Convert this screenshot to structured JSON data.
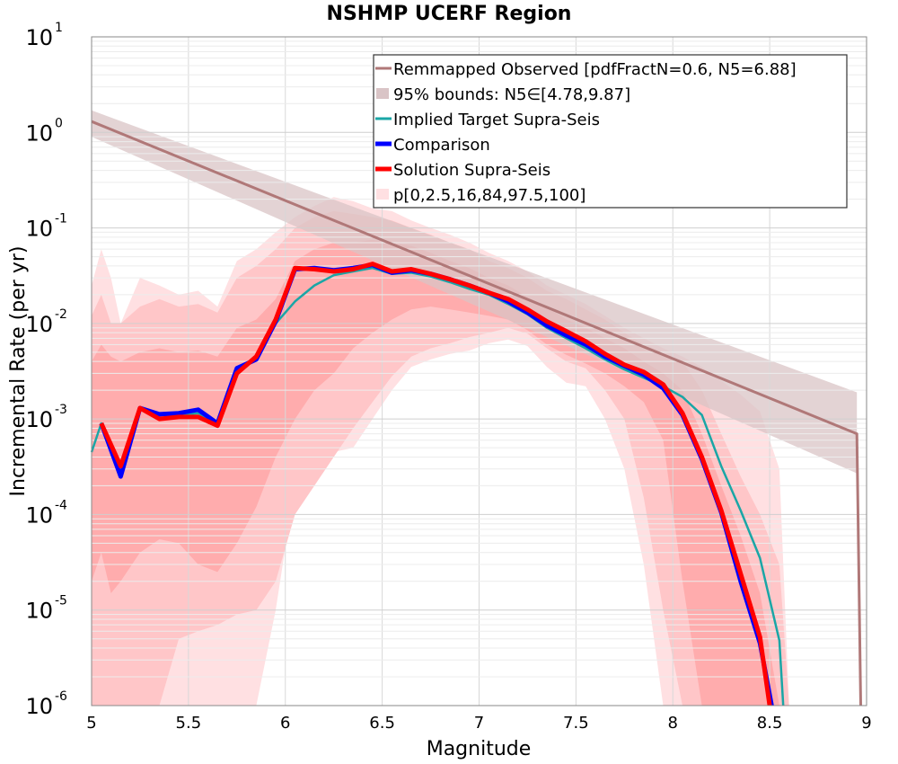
{
  "chart_data": {
    "type": "line",
    "title": "NSHMP UCERF Region",
    "xlabel": "Magnitude",
    "ylabel": "Incremental Rate (per yr)",
    "xlim": [
      5,
      9
    ],
    "ylim": [
      1e-06,
      10
    ],
    "yscale": "log",
    "grid": true,
    "legend_position": "top-right",
    "x_ticks": [
      "5",
      "5.5",
      "6",
      "6.5",
      "7",
      "7.5",
      "8",
      "8.5",
      "9"
    ],
    "y_ticks": [
      {
        "base": "10",
        "exp": "-6"
      },
      {
        "base": "10",
        "exp": "-5"
      },
      {
        "base": "10",
        "exp": "-4"
      },
      {
        "base": "10",
        "exp": "-3"
      },
      {
        "base": "10",
        "exp": "-2"
      },
      {
        "base": "10",
        "exp": "-1"
      },
      {
        "base": "10",
        "exp": "0"
      },
      {
        "base": "10",
        "exp": "1"
      }
    ],
    "colors": {
      "observed": "#b07878",
      "observed_band": "#d9c4c6",
      "target": "#1aa6a6",
      "comparison": "#0000ff",
      "solution": "#ff0000",
      "band_outer": "#ffe0e2",
      "band_mid": "#ffc6c8",
      "band_inner": "#ffacad"
    },
    "legend": [
      {
        "key": "observed",
        "label": "Remmapped Observed [pdfFractN=0.6, N5=6.88]"
      },
      {
        "key": "observed_band",
        "label": "95% bounds: N5∈[4.78,9.87]"
      },
      {
        "key": "target",
        "label": "Implied Target Supra-Seis"
      },
      {
        "key": "comparison",
        "label": "Comparison"
      },
      {
        "key": "solution",
        "label": "Solution Supra-Seis"
      },
      {
        "key": "band",
        "label": "p[0,2.5,16,84,97.5,100]"
      }
    ],
    "series": [
      {
        "name": "Remmapped Observed [pdfFractN=0.6, N5=6.88]",
        "key": "observed",
        "x": [
          5.0,
          8.95,
          8.97
        ],
        "y": [
          1.3,
          0.0007,
          1e-06
        ]
      },
      {
        "name": "95% bounds: N5∈[4.78,9.87]",
        "key": "observed_band",
        "x": [
          5.0,
          8.95
        ],
        "lower": [
          0.9,
          0.00027
        ],
        "upper": [
          1.7,
          0.0019
        ]
      },
      {
        "name": "Implied Target Supra-Seis",
        "key": "target",
        "x": [
          5.0,
          5.05,
          5.15,
          5.25,
          5.35,
          5.45,
          5.55,
          5.65,
          5.75,
          5.85,
          5.95,
          6.05,
          6.15,
          6.25,
          6.35,
          6.45,
          6.55,
          6.65,
          6.75,
          6.85,
          6.95,
          7.05,
          7.15,
          7.25,
          7.35,
          7.45,
          7.55,
          7.65,
          7.75,
          7.85,
          7.95,
          8.05,
          8.15,
          8.25,
          8.35,
          8.45,
          8.55,
          8.57
        ],
        "y": [
          0.00045,
          0.0009,
          0.00025,
          0.0013,
          0.0011,
          0.0011,
          0.00115,
          0.0009,
          0.0034,
          0.0042,
          0.01,
          0.017,
          0.025,
          0.032,
          0.035,
          0.038,
          0.033,
          0.034,
          0.031,
          0.027,
          0.023,
          0.02,
          0.016,
          0.0125,
          0.009,
          0.007,
          0.0055,
          0.0042,
          0.0033,
          0.0027,
          0.0022,
          0.0017,
          0.0011,
          0.00032,
          0.00011,
          3.5e-05,
          4.8e-06,
          1e-06
        ]
      },
      {
        "name": "Comparison",
        "key": "comparison",
        "x": [
          5.05,
          5.15,
          5.25,
          5.35,
          5.45,
          5.55,
          5.65,
          5.75,
          5.85,
          5.95,
          6.05,
          6.15,
          6.25,
          6.35,
          6.45,
          6.55,
          6.65,
          6.75,
          6.85,
          6.95,
          7.05,
          7.15,
          7.25,
          7.35,
          7.45,
          7.55,
          7.65,
          7.75,
          7.85,
          7.95,
          8.05,
          8.15,
          8.25,
          8.35,
          8.45,
          8.51
        ],
        "y": [
          0.0009,
          0.00025,
          0.0013,
          0.00112,
          0.00115,
          0.00125,
          0.0009,
          0.0034,
          0.0042,
          0.0105,
          0.037,
          0.038,
          0.036,
          0.038,
          0.041,
          0.034,
          0.036,
          0.033,
          0.029,
          0.025,
          0.021,
          0.017,
          0.013,
          0.0095,
          0.0075,
          0.006,
          0.0045,
          0.0036,
          0.0029,
          0.0021,
          0.0011,
          0.00038,
          0.000105,
          2e-05,
          4.5e-06,
          1e-06
        ]
      },
      {
        "name": "Solution Supra-Seis",
        "key": "solution",
        "x": [
          5.05,
          5.15,
          5.25,
          5.35,
          5.45,
          5.55,
          5.65,
          5.75,
          5.85,
          5.95,
          6.05,
          6.15,
          6.25,
          6.35,
          6.45,
          6.55,
          6.65,
          6.75,
          6.85,
          6.95,
          7.05,
          7.15,
          7.25,
          7.35,
          7.45,
          7.55,
          7.65,
          7.75,
          7.85,
          7.95,
          8.05,
          8.15,
          8.25,
          8.35,
          8.45,
          8.5
        ],
        "y": [
          0.0009,
          0.00032,
          0.0013,
          0.001,
          0.00105,
          0.00105,
          0.00085,
          0.003,
          0.0045,
          0.011,
          0.038,
          0.037,
          0.035,
          0.037,
          0.042,
          0.035,
          0.037,
          0.033,
          0.029,
          0.025,
          0.021,
          0.018,
          0.014,
          0.0105,
          0.0083,
          0.0065,
          0.0048,
          0.0037,
          0.0031,
          0.0023,
          0.00115,
          0.0004,
          0.00011,
          2.4e-05,
          5.2e-06,
          1e-06
        ]
      },
      {
        "name": "p[0,2.5,16,84,97.5,100]",
        "key": "band",
        "x": [
          5.0,
          5.05,
          5.1,
          5.15,
          5.25,
          5.35,
          5.45,
          5.55,
          5.65,
          5.75,
          5.85,
          5.95,
          6.05,
          6.15,
          6.25,
          6.35,
          6.45,
          6.55,
          6.65,
          6.75,
          6.85,
          6.95,
          7.05,
          7.15,
          7.25,
          7.35,
          7.45,
          7.55,
          7.65,
          7.75,
          7.85,
          7.95,
          8.05,
          8.15,
          8.25,
          8.35,
          8.45,
          8.55,
          8.6
        ],
        "p0": [
          1e-06,
          1e-06,
          1e-06,
          1e-06,
          1e-06,
          1e-06,
          1e-06,
          1e-06,
          1e-06,
          1e-06,
          1e-06,
          1e-05,
          0.0002,
          0.00035,
          0.00045,
          0.0005,
          0.001,
          0.002,
          0.0035,
          0.0042,
          0.0048,
          0.0052,
          0.0062,
          0.0068,
          0.0058,
          0.0035,
          0.0024,
          0.0022,
          0.001,
          0.0003,
          3e-05,
          1e-06,
          1e-06,
          1e-06,
          1e-06,
          1e-06,
          1e-06,
          1e-06,
          1e-06
        ],
        "p2_5": [
          1e-06,
          1e-06,
          1e-06,
          1e-06,
          1e-06,
          1e-06,
          5e-06,
          6e-06,
          7e-06,
          9e-06,
          1e-05,
          2e-05,
          0.0001,
          0.0002,
          0.0004,
          0.0008,
          0.0015,
          0.0028,
          0.0045,
          0.0055,
          0.0062,
          0.0072,
          0.008,
          0.009,
          0.0078,
          0.0055,
          0.004,
          0.0034,
          0.002,
          0.001,
          0.00015,
          1e-05,
          1e-06,
          1e-06,
          1e-06,
          1e-06,
          1e-06,
          1e-06,
          1e-06
        ],
        "p16": [
          2e-05,
          4e-05,
          1.5e-05,
          2e-05,
          4e-05,
          5.5e-05,
          5e-05,
          3e-05,
          2.5e-05,
          5e-05,
          0.00012,
          0.0004,
          0.001,
          0.002,
          0.003,
          0.0055,
          0.008,
          0.011,
          0.014,
          0.015,
          0.014,
          0.013,
          0.012,
          0.011,
          0.0085,
          0.006,
          0.0047,
          0.0038,
          0.003,
          0.0022,
          0.0015,
          0.0006,
          2e-05,
          1e-06,
          1e-06,
          1e-06,
          1e-06,
          1e-06,
          1e-06
        ],
        "p84": [
          0.004,
          0.006,
          0.0045,
          0.004,
          0.005,
          0.0055,
          0.005,
          0.0052,
          0.0045,
          0.009,
          0.011,
          0.018,
          0.045,
          0.06,
          0.07,
          0.07,
          0.075,
          0.07,
          0.065,
          0.055,
          0.045,
          0.038,
          0.03,
          0.025,
          0.019,
          0.015,
          0.011,
          0.009,
          0.007,
          0.0055,
          0.004,
          0.003,
          0.002,
          0.0007,
          0.0002,
          6e-05,
          1.5e-05,
          1e-06,
          1e-06
        ],
        "p97_5": [
          0.012,
          0.02,
          0.01,
          0.01,
          0.015,
          0.018,
          0.015,
          0.016,
          0.013,
          0.03,
          0.04,
          0.06,
          0.1,
          0.13,
          0.15,
          0.14,
          0.13,
          0.12,
          0.1,
          0.085,
          0.07,
          0.06,
          0.045,
          0.038,
          0.03,
          0.022,
          0.018,
          0.014,
          0.011,
          0.008,
          0.006,
          0.005,
          0.004,
          0.002,
          0.0007,
          0.00025,
          0.0001,
          3e-05,
          1e-06
        ],
        "p100": [
          0.025,
          0.06,
          0.03,
          0.01,
          0.03,
          0.025,
          0.02,
          0.022,
          0.015,
          0.045,
          0.06,
          0.09,
          0.13,
          0.17,
          0.21,
          0.19,
          0.16,
          0.15,
          0.12,
          0.1,
          0.085,
          0.07,
          0.055,
          0.045,
          0.035,
          0.025,
          0.02,
          0.016,
          0.012,
          0.009,
          0.007,
          0.0055,
          0.0045,
          0.0035,
          0.0025,
          0.0018,
          0.0012,
          0.0003,
          1e-06
        ]
      }
    ]
  }
}
